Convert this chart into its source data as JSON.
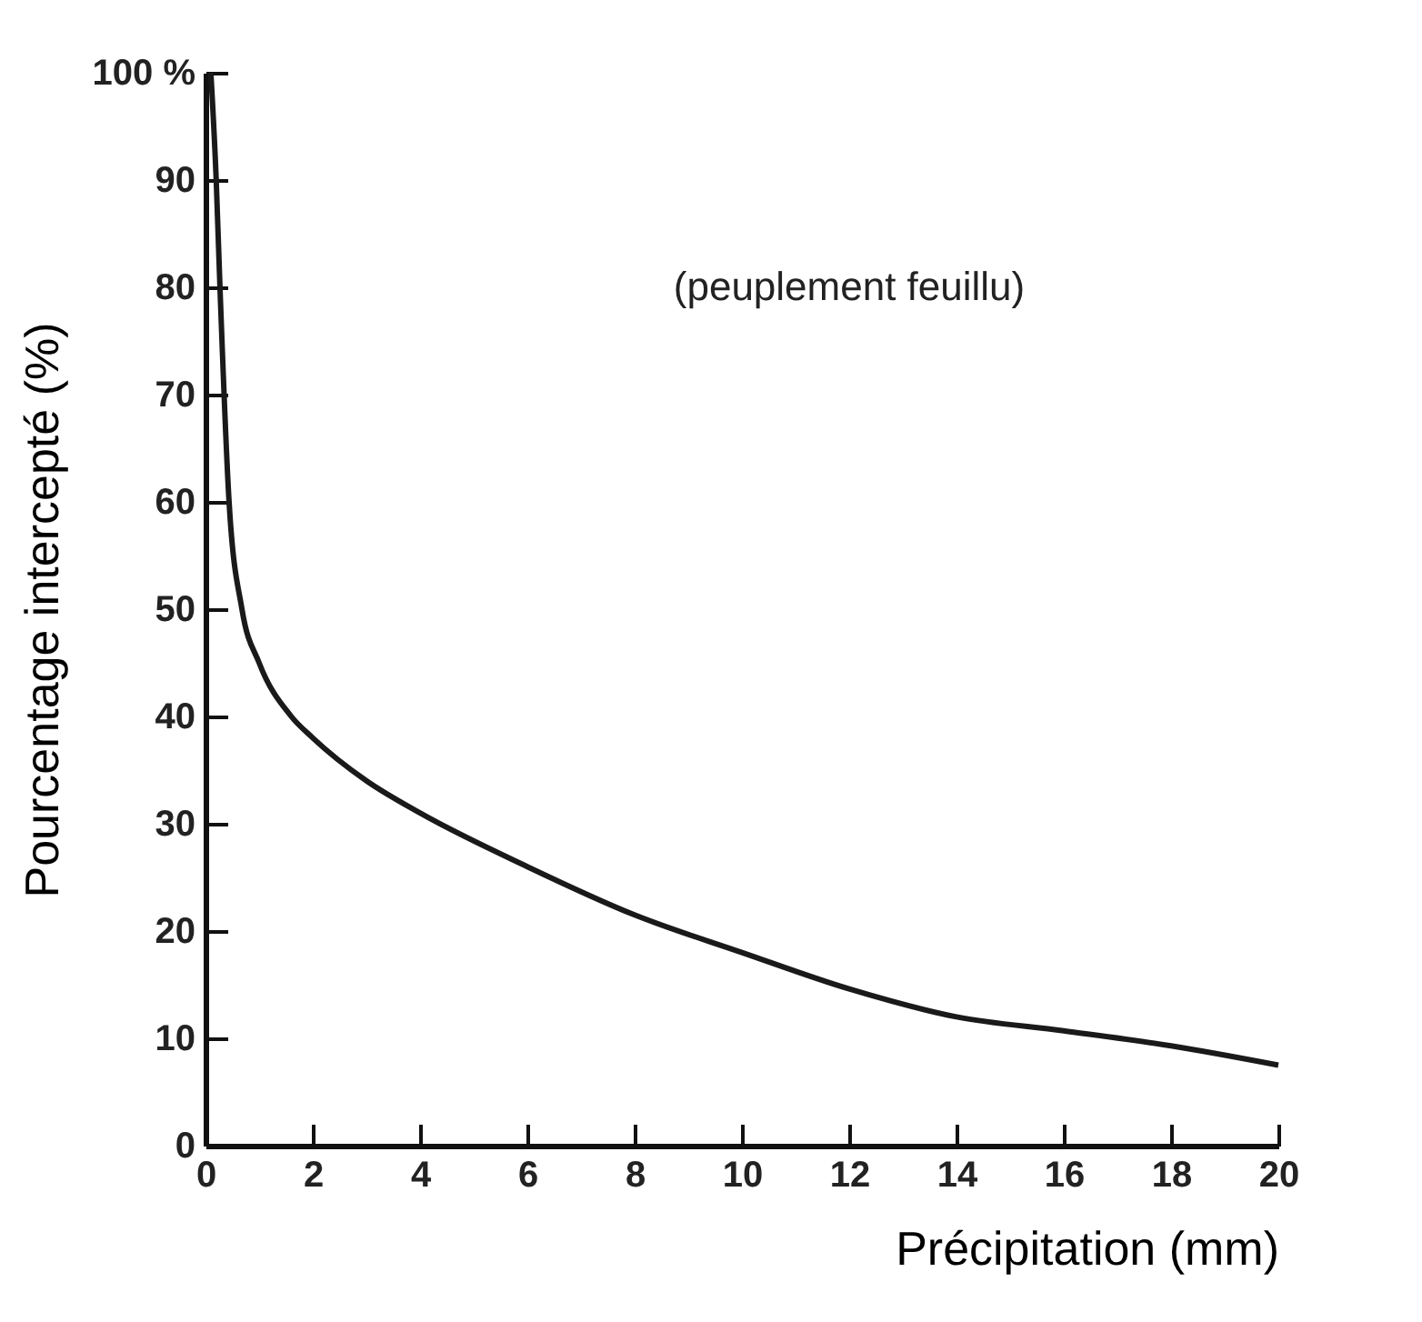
{
  "chart_data": {
    "type": "line",
    "xlabel": "Précipitation (mm)",
    "ylabel": "Pourcentage intercepté (%)",
    "annotations": [
      "(peuplement feuillu)"
    ],
    "x": [
      0.1,
      0.2,
      0.27,
      0.44,
      0.68,
      1.0,
      1.6,
      2,
      3,
      4,
      6,
      8,
      10,
      12,
      14,
      16,
      18,
      20
    ],
    "series": [
      {
        "color": "#1a1a1a",
        "values": [
          100,
          90,
          80,
          60,
          50,
          45,
          40,
          38,
          34,
          31,
          26,
          21.5,
          18,
          14.6,
          12,
          10.7,
          9.3,
          7.5
        ]
      }
    ],
    "xlim": [
      0,
      20
    ],
    "xticks": [
      0,
      2,
      4,
      6,
      8,
      10,
      12,
      14,
      16,
      18,
      20
    ],
    "ylim": [
      0,
      100
    ],
    "yticks": [
      0,
      10,
      20,
      30,
      40,
      50,
      60,
      70,
      80,
      90,
      {
        "value": 100,
        "label": "100 %"
      }
    ],
    "grid": false,
    "marker": "none",
    "line_style": "solid"
  }
}
